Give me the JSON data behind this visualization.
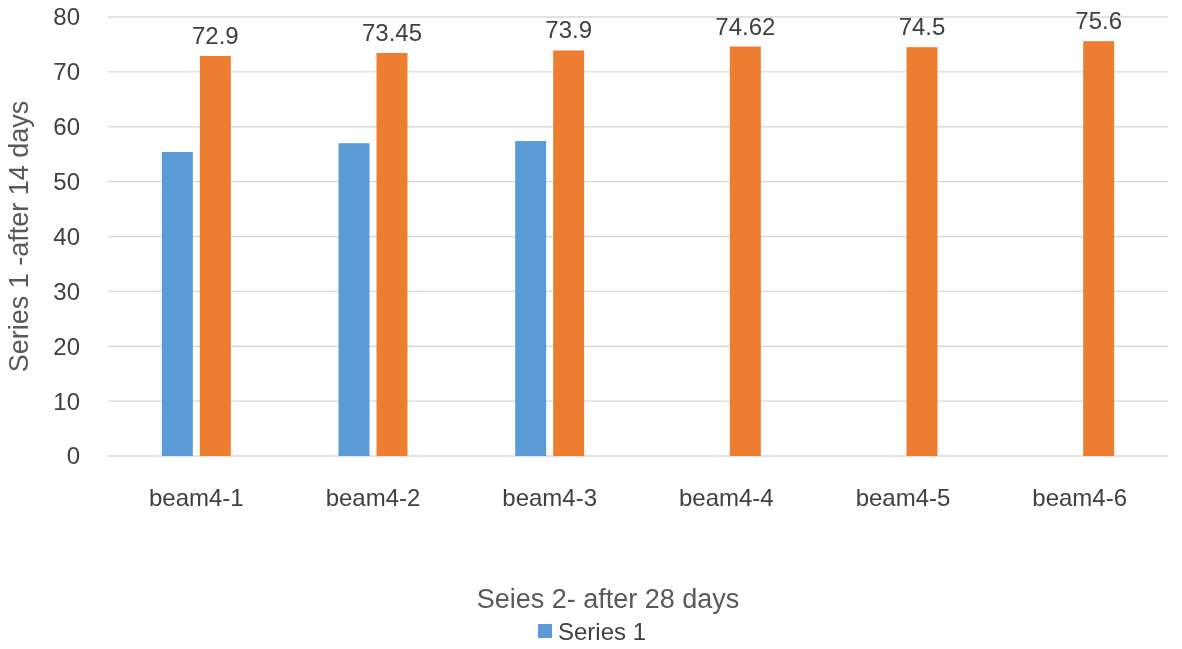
{
  "chart_data": {
    "type": "bar",
    "xlabel": "Seies 2- after 28 days",
    "ylabel": "Series 1 -after 14 days",
    "categories": [
      "beam4-1",
      "beam4-2",
      "beam4-3",
      "beam4-4",
      "beam4-5",
      "beam4-6"
    ],
    "series": [
      {
        "name": "Series 1",
        "color": "#5b9bd5",
        "values": [
          55.4,
          57.0,
          57.4,
          null,
          null,
          null
        ]
      },
      {
        "color": "#ed7d31",
        "values": [
          72.9,
          73.45,
          73.9,
          74.62,
          74.5,
          75.6
        ],
        "value_labels": [
          "72.9",
          "73.45",
          "73.9",
          "74.62",
          "74.5",
          "75.6"
        ]
      }
    ],
    "ylim": [
      0,
      80
    ],
    "yticks": [
      0,
      10,
      20,
      30,
      40,
      50,
      60,
      70,
      80
    ],
    "grid": "y",
    "legend": "bottom"
  }
}
